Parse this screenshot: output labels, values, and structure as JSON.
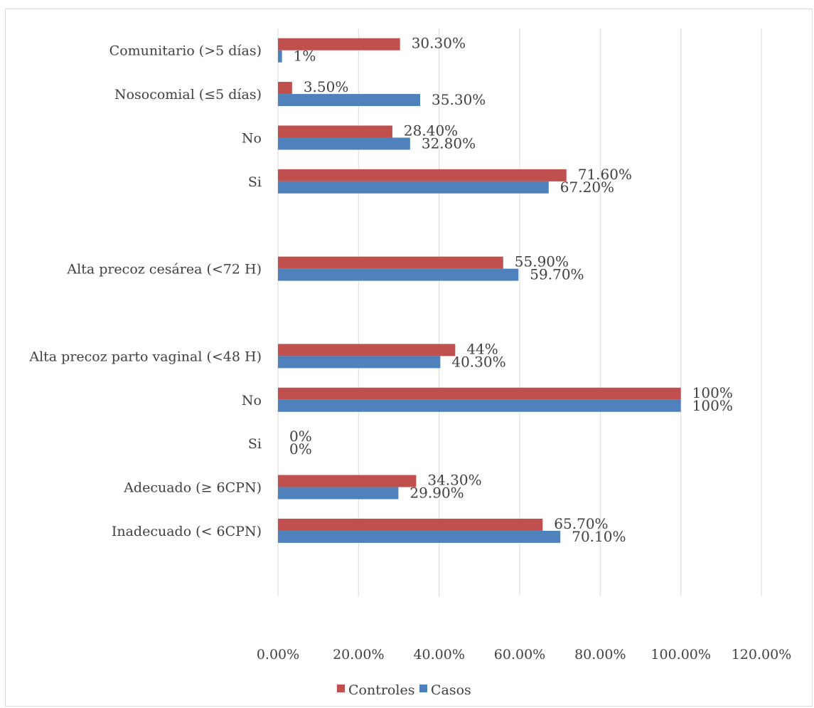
{
  "chart_data": {
    "type": "bar",
    "orientation": "horizontal",
    "xlim": [
      0,
      120
    ],
    "x_ticks": [
      "0.00%",
      "20.00%",
      "40.00%",
      "60.00%",
      "80.00%",
      "100.00%",
      "120.00%"
    ],
    "grid": true,
    "legend_position": "bottom",
    "legend": [
      "Controles",
      "Casos"
    ],
    "rows": [
      {
        "category": "Comunitario (>5 días)",
        "controles": 30.3,
        "controles_label": "30.30%",
        "casos": 1,
        "casos_label": "1%"
      },
      {
        "category": "Nosocomial (≤5 días)",
        "controles": 3.5,
        "controles_label": "3.50%",
        "casos": 35.3,
        "casos_label": "35.30%"
      },
      {
        "category": "No",
        "controles": 28.4,
        "controles_label": "28.40%",
        "casos": 32.8,
        "casos_label": "32.80%"
      },
      {
        "category": "Si",
        "controles": 71.6,
        "controles_label": "71.60%",
        "casos": 67.2,
        "casos_label": "67.20%"
      },
      {
        "category": "",
        "controles": null,
        "controles_label": "",
        "casos": null,
        "casos_label": ""
      },
      {
        "category": "Alta precoz cesárea  (<72 H)",
        "controles": 55.9,
        "controles_label": "55.90%",
        "casos": 59.7,
        "casos_label": "59.70%"
      },
      {
        "category": "",
        "controles": null,
        "controles_label": "",
        "casos": null,
        "casos_label": ""
      },
      {
        "category": "Alta precoz parto vaginal (<48 H)",
        "controles": 44,
        "controles_label": "44%",
        "casos": 40.3,
        "casos_label": "40.30%"
      },
      {
        "category": "No",
        "controles": 100,
        "controles_label": "100%",
        "casos": 100,
        "casos_label": "100%"
      },
      {
        "category": "Si",
        "controles": 0,
        "controles_label": "0%",
        "casos": 0,
        "casos_label": "0%"
      },
      {
        "category": "Adecuado (≥ 6CPN)",
        "controles": 34.3,
        "controles_label": "34.30%",
        "casos": 29.9,
        "casos_label": "29.90%"
      },
      {
        "category": "Inadecuado (< 6CPN)",
        "controles": 65.7,
        "controles_label": "65.70%",
        "casos": 70.1,
        "casos_label": "70.10%"
      },
      {
        "category": "",
        "controles": null,
        "controles_label": "",
        "casos": null,
        "casos_label": ""
      }
    ]
  },
  "colors": {
    "controles": "#c0504d",
    "casos": "#4f81bd",
    "grid": "#d9d9d9",
    "text": "#404040"
  }
}
